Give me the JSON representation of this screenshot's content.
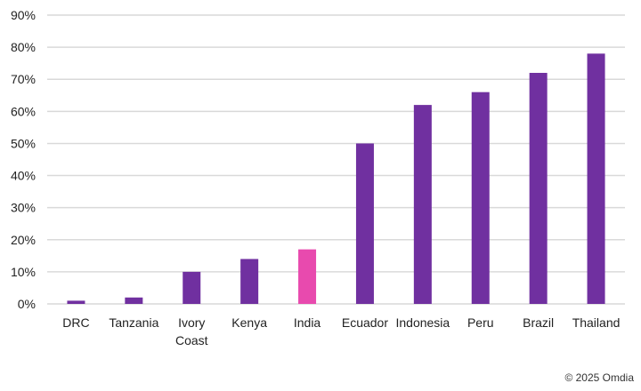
{
  "chart_data": {
    "type": "bar",
    "categories": [
      [
        "DRC"
      ],
      [
        "Tanzania"
      ],
      [
        "Ivory",
        "Coast"
      ],
      [
        "Kenya"
      ],
      [
        "India"
      ],
      [
        "Ecuador"
      ],
      [
        "Indonesia"
      ],
      [
        "Peru"
      ],
      [
        "Brazil"
      ],
      [
        "Thailand"
      ]
    ],
    "values": [
      1,
      2,
      10,
      14,
      17,
      50,
      62,
      66,
      72,
      78
    ],
    "highlight": [
      false,
      false,
      false,
      false,
      true,
      false,
      false,
      false,
      false,
      false
    ],
    "title": "",
    "xlabel": "",
    "ylabel": "",
    "ylim": [
      0,
      90
    ],
    "yticks": [
      0,
      10,
      20,
      30,
      40,
      50,
      60,
      70,
      80,
      90
    ],
    "ytick_labels": [
      "0%",
      "10%",
      "20%",
      "30%",
      "40%",
      "50%",
      "60%",
      "70%",
      "80%",
      "90%"
    ],
    "grid": true,
    "legend": "none",
    "colors": {
      "bar": "#7030a0",
      "highlight": "#e84aae",
      "grid": "#d9d9d9"
    }
  },
  "watermark": "© 2025 Omdia"
}
